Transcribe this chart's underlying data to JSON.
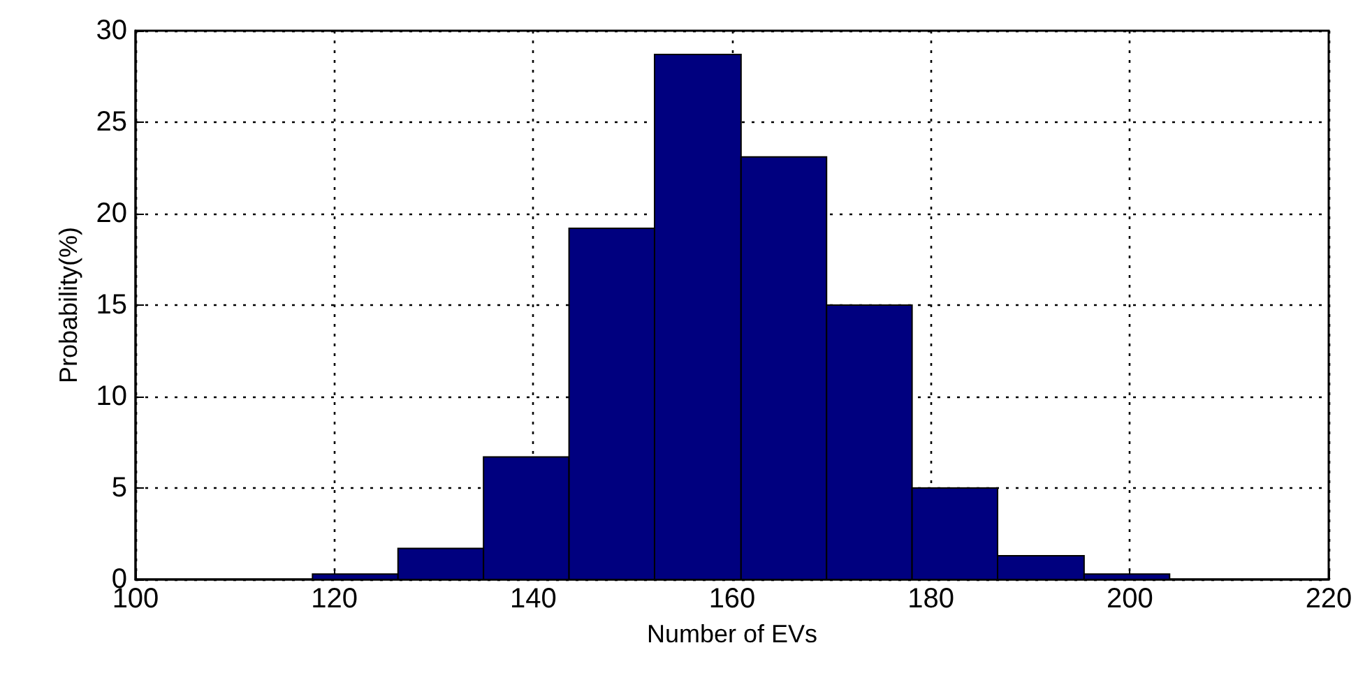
{
  "chart_data": {
    "type": "histogram",
    "xlabel": "Number of EVs",
    "ylabel": "Probability(%)",
    "bins": [
      117.8,
      126.4,
      135.0,
      143.6,
      152.2,
      160.9,
      169.5,
      178.1,
      186.7,
      195.4,
      204.0
    ],
    "values": [
      0.3,
      1.7,
      6.7,
      19.2,
      28.7,
      23.1,
      15.0,
      5.0,
      1.3,
      0.3
    ],
    "color": "#00007f",
    "xlim": [
      100,
      220
    ],
    "xticks": [
      100,
      120,
      140,
      160,
      180,
      200,
      220
    ],
    "ylim": [
      0,
      30
    ],
    "yticks": [
      0,
      5,
      10,
      15,
      20,
      25,
      30
    ],
    "grid": true
  }
}
